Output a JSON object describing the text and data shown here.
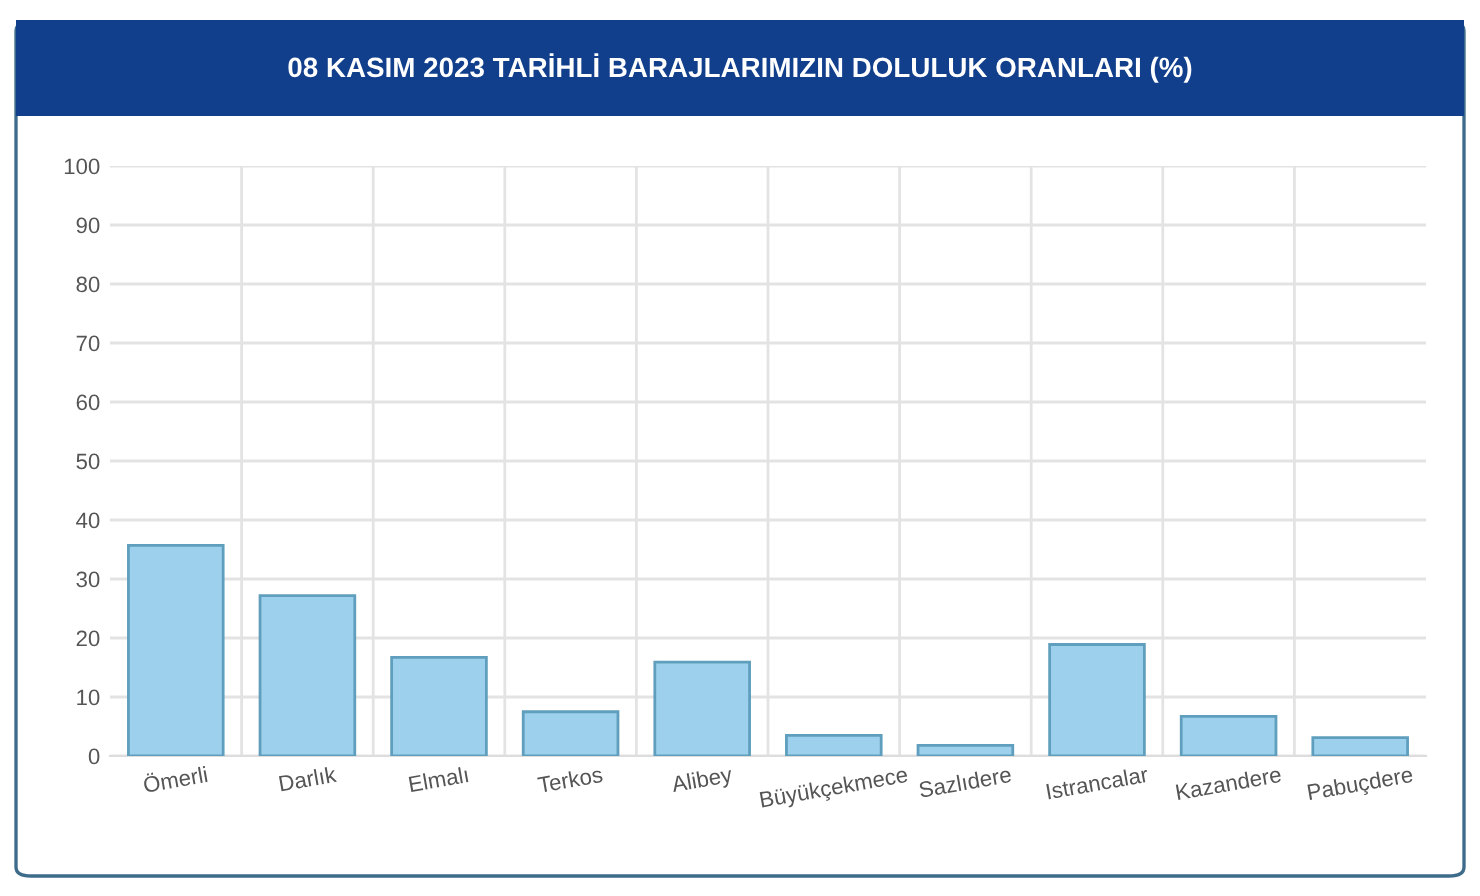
{
  "chart_data": {
    "type": "bar",
    "title": "08 KASIM 2023 TARİHLİ BARAJLARIMIZIN DOLULUK ORANLARI (%)",
    "categories": [
      "Ömerli",
      "Darlık",
      "Elmalı",
      "Terkos",
      "Alibey",
      "Büyükçekmece",
      "Sazlıdere",
      "Istrancalar",
      "Kazandere",
      "Pabuçdere"
    ],
    "values": [
      35.7,
      27.2,
      16.7,
      7.5,
      15.9,
      3.5,
      1.8,
      18.9,
      6.7,
      3.1
    ],
    "color": "#9dd0ec",
    "ylim": [
      0,
      100
    ],
    "yticks": [
      0,
      10,
      20,
      30,
      40,
      50,
      60,
      70,
      80,
      90,
      100
    ],
    "grid": true
  }
}
